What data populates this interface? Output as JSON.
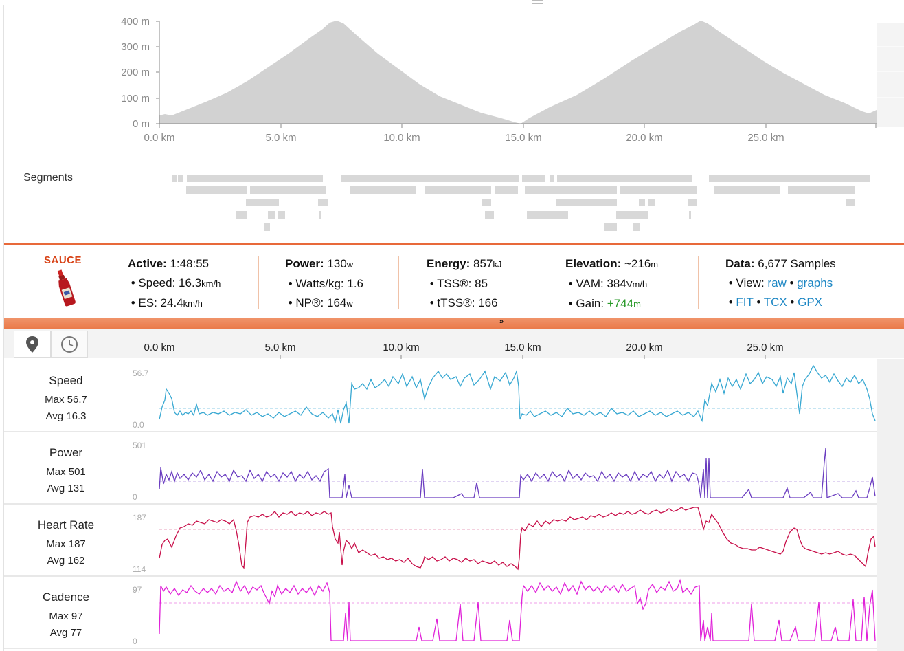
{
  "elevation": {
    "y_ticks": [
      "400 m",
      "300 m",
      "200 m",
      "100 m",
      "0 m"
    ],
    "x_ticks": [
      "0.0 km",
      "5.0 km",
      "10.0 km",
      "15.0 km",
      "20.0 km",
      "25.0 km"
    ]
  },
  "segments": {
    "label": "Segments"
  },
  "sauce": {
    "logo": "SAUCE"
  },
  "stats": {
    "active": {
      "label": "Active:",
      "value": "1:48:55"
    },
    "speed": {
      "label": "Speed:",
      "value": "16.3",
      "unit": "km/h"
    },
    "es": {
      "label": "ES:",
      "value": "24.4",
      "unit": "km/h"
    },
    "power": {
      "label": "Power:",
      "value": "130",
      "unit": "w"
    },
    "wkg": {
      "label": "Watts/kg:",
      "value": "1.6"
    },
    "np": {
      "label": "NP®:",
      "value": "164",
      "unit": "w"
    },
    "energy": {
      "label": "Energy:",
      "value": "857",
      "unit": "kJ"
    },
    "tss": {
      "label": "TSS®:",
      "value": "85"
    },
    "ttss": {
      "label": "tTSS®:",
      "value": "166"
    },
    "elevation": {
      "label": "Elevation:",
      "value": "~216",
      "unit": "m"
    },
    "vam": {
      "label": "VAM:",
      "value": "384",
      "unit": "Vm/h"
    },
    "gain": {
      "label": "Gain:",
      "value": "+744",
      "unit": "m"
    },
    "data": {
      "label": "Data:",
      "value": "6,677 Samples"
    },
    "view": {
      "label": "View:",
      "raw": "raw",
      "graphs": "graphs"
    },
    "exports": {
      "fit": "FIT",
      "tcx": "TCX",
      "gpx": "GPX"
    }
  },
  "axis": {
    "x_ticks": [
      "0.0 km",
      "5.0 km",
      "10.0 km",
      "15.0 km",
      "20.0 km",
      "25.0 km"
    ]
  },
  "panels": [
    {
      "title": "Speed",
      "max": "Max 56.7",
      "avg": "Avg 16.3",
      "ymax": "56.7",
      "ymin": "0.0",
      "color": "#38a8d2"
    },
    {
      "title": "Power",
      "max": "Max 501",
      "avg": "Avg 131",
      "ymax": "501",
      "ymin": "0",
      "color": "#6a3cc0"
    },
    {
      "title": "Heart Rate",
      "max": "Max 187",
      "avg": "Avg 162",
      "ymax": "187",
      "ymin": "114",
      "color": "#c8104a"
    },
    {
      "title": "Cadence",
      "max": "Max 97",
      "avg": "Avg 77",
      "ymax": "97",
      "ymin": "0",
      "color": "#e020d8"
    }
  ]
}
